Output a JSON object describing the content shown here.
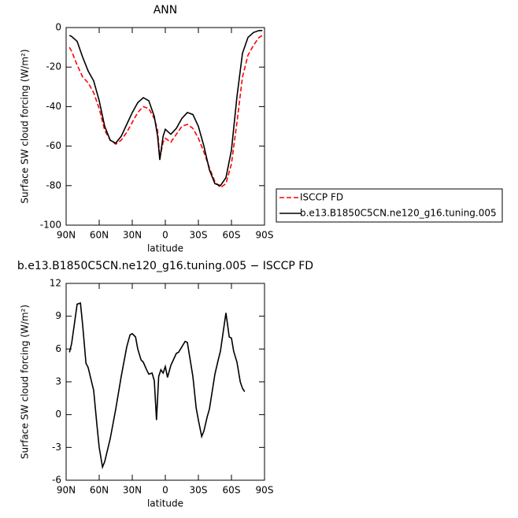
{
  "chart_data": [
    {
      "type": "line",
      "title": "ANN",
      "ylabel": "Surface SW cloud forcing (W/m²)",
      "xlabel": "latitude",
      "x": [
        87,
        85,
        80,
        75,
        70,
        65,
        60,
        55,
        50,
        45,
        40,
        35,
        30,
        25,
        20,
        15,
        10,
        7,
        5,
        2,
        0,
        -5,
        -10,
        -15,
        -20,
        -25,
        -30,
        -35,
        -40,
        -45,
        -50,
        -55,
        -60,
        -65,
        -70,
        -75,
        -80,
        -85,
        -88
      ],
      "series": [
        {
          "name": "ISCCP FD",
          "color": "#ff0000",
          "line_style": "dashed",
          "values": [
            -10,
            -12,
            -19,
            -25,
            -28,
            -33,
            -41,
            -52,
            -57,
            -59,
            -57,
            -53,
            -48,
            -43,
            -40,
            -41,
            -46,
            -52,
            -66,
            -58,
            -56,
            -58,
            -54,
            -50,
            -49,
            -51,
            -56,
            -63,
            -71,
            -78,
            -81,
            -79,
            -69,
            -48,
            -25,
            -14,
            -9,
            -5,
            -4
          ]
        },
        {
          "name": "b.e13.B1850C5CN.ne120_g16.tuning.005",
          "color": "#000000",
          "line_style": "solid",
          "values": [
            -4,
            -4.5,
            -7,
            -15,
            -22,
            -27,
            -37,
            -50,
            -57,
            -58.5,
            -55,
            -49,
            -43,
            -38,
            -35.5,
            -37,
            -45,
            -55,
            -67,
            -55,
            -51.5,
            -54,
            -51,
            -46,
            -43,
            -44,
            -50,
            -60,
            -72,
            -79,
            -80,
            -76,
            -62,
            -35,
            -13,
            -5,
            -2.5,
            -1.5,
            -1.5
          ]
        }
      ],
      "xlim": [
        90,
        -90
      ],
      "xticks": [
        {
          "value": 90,
          "label": "90N"
        },
        {
          "value": 60,
          "label": "60N"
        },
        {
          "value": 30,
          "label": "30N"
        },
        0,
        {
          "value": -30,
          "label": "30S"
        },
        {
          "value": -60,
          "label": "60S"
        },
        {
          "value": -90,
          "label": "90S"
        }
      ],
      "ylim": [
        -100,
        0
      ],
      "yticks": [
        -100,
        -80,
        -60,
        -40,
        -20,
        0
      ],
      "legend": "outside-right-bottom"
    },
    {
      "type": "line",
      "title": "b.e13.B1850C5CN.ne120_g16.tuning.005 − ISCCP FD",
      "ylabel": "Surface SW cloud forcing (W/m²)",
      "xlabel": "latitude",
      "x": [
        87,
        85,
        80,
        77,
        75,
        72,
        70,
        65,
        62,
        60,
        57,
        55,
        50,
        45,
        40,
        35,
        32,
        30,
        27,
        25,
        22,
        20,
        17,
        15,
        12,
        10,
        8,
        6,
        4,
        2,
        0,
        -2,
        -5,
        -10,
        -12,
        -15,
        -18,
        -20,
        -25,
        -28,
        -30,
        -33,
        -35,
        -38,
        -40,
        -45,
        -48,
        -50,
        -55,
        -58,
        -60,
        -62,
        -65,
        -68,
        -70,
        -72
      ],
      "series": [
        {
          "color": "#000000",
          "line_style": "solid",
          "values": [
            5.7,
            6.5,
            10.1,
            10.2,
            8.2,
            4.7,
            4.3,
            2.2,
            -1.0,
            -3,
            -4.8,
            -4.3,
            -2.2,
            0.5,
            3.5,
            6.2,
            7.3,
            7.4,
            7.1,
            6,
            5,
            4.8,
            4.1,
            3.7,
            3.8,
            3.1,
            -0.5,
            3.5,
            4.1,
            3.8,
            4.4,
            3.4,
            4.5,
            5.6,
            5.7,
            6.2,
            6.7,
            6.6,
            3.5,
            0.6,
            -0.5,
            -2,
            -1.5,
            -0.2,
            0.5,
            3.7,
            5,
            5.8,
            9.3,
            7.1,
            7.0,
            5.8,
            4.8,
            3,
            2.4,
            2.1
          ]
        }
      ],
      "xlim": [
        90,
        -90
      ],
      "xticks": [
        {
          "value": 90,
          "label": "90N"
        },
        {
          "value": 60,
          "label": "60N"
        },
        {
          "value": 30,
          "label": "30N"
        },
        0,
        {
          "value": -30,
          "label": "30S"
        },
        {
          "value": -60,
          "label": "60S"
        },
        {
          "value": -90,
          "label": "90S"
        }
      ],
      "ylim": [
        -6,
        12
      ],
      "yticks": [
        -6,
        -3,
        0,
        3,
        6,
        9,
        12
      ]
    }
  ]
}
